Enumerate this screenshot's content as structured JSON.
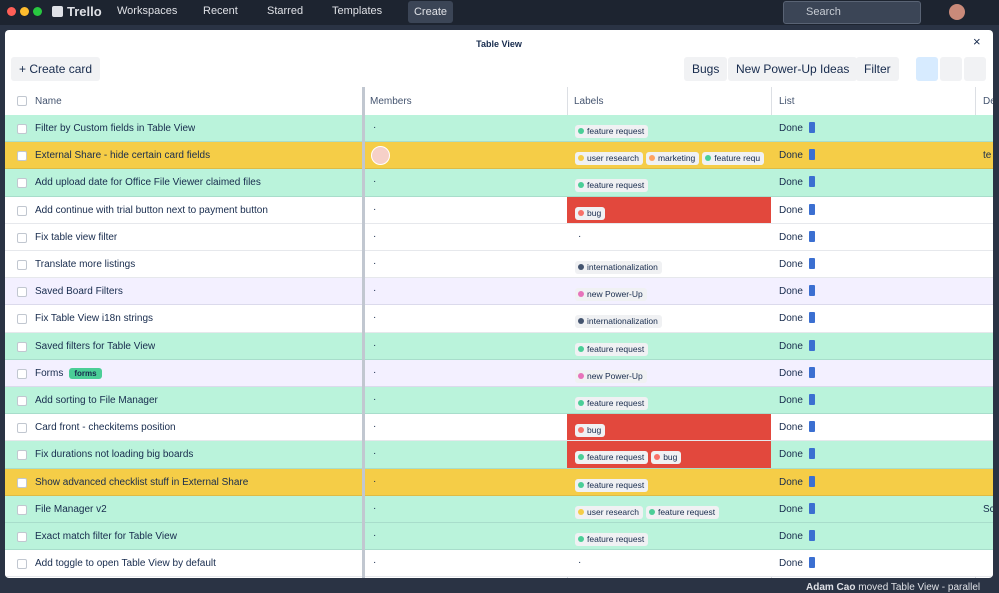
{
  "topbar": {
    "brand": "Trello",
    "nav": [
      "Workspaces",
      "Recent",
      "Starred",
      "Templates"
    ],
    "create": "Create",
    "search": "Search"
  },
  "modal": {
    "title": "Table View",
    "toolbar": {
      "create_card": "Create card",
      "buttons": [
        "Bugs",
        "New Power-Up Ideas",
        "Filter"
      ]
    },
    "columns": [
      "Name",
      "Members",
      "Labels",
      "List",
      "De"
    ],
    "rows": [
      {
        "name": "Filter by Custom fields in Table View",
        "bg": "#baf3db",
        "members": "·",
        "labels": [
          {
            "text": "feature request",
            "dot": "#4bce97"
          }
        ],
        "list": "Done"
      },
      {
        "name": "External Share - hide certain card fields",
        "bg": "#f5cd47",
        "labels": [
          {
            "text": "user research",
            "dot": "#f5cd47"
          },
          {
            "text": "marketing",
            "dot": "#fea362"
          },
          {
            "text": "feature requ",
            "dot": "#4bce97"
          }
        ],
        "list": "Done",
        "extra": "te"
      },
      {
        "name": "Add upload date for Office File Viewer claimed files",
        "bg": "#baf3db",
        "members": "·",
        "labels": [
          {
            "text": "feature request",
            "dot": "#4bce97"
          }
        ],
        "list": "Done"
      },
      {
        "name": "Add continue with trial button next to payment button",
        "bg": "#ffffff",
        "members": "·",
        "label_bg": "#e2483d",
        "labels": [
          {
            "text": "bug",
            "dot": "#f87168"
          }
        ],
        "list": "Done"
      },
      {
        "name": "Fix table view filter",
        "bg": "#ffffff",
        "members": "·",
        "labels_empty": "·",
        "list": "Done"
      },
      {
        "name": "Translate more listings",
        "bg": "#ffffff",
        "members": "·",
        "labels": [
          {
            "text": "internationalization",
            "dot": "#44546f"
          }
        ],
        "list": "Done"
      },
      {
        "name": "Saved Board Filters",
        "bg": "#f3f0ff",
        "members": "·",
        "labels": [
          {
            "text": "new Power-Up",
            "dot": "#e774bb"
          }
        ],
        "list": "Done"
      },
      {
        "name": "Fix Table View i18n strings",
        "bg": "#ffffff",
        "members": "·",
        "labels": [
          {
            "text": "internationalization",
            "dot": "#44546f"
          }
        ],
        "list": "Done"
      },
      {
        "name": "Saved filters for Table View",
        "bg": "#baf3db",
        "members": "·",
        "labels": [
          {
            "text": "feature request",
            "dot": "#4bce97"
          }
        ],
        "list": "Done"
      },
      {
        "name": "Forms",
        "badge": "forms",
        "bg": "#f3f0ff",
        "members": "·",
        "labels": [
          {
            "text": "new Power-Up",
            "dot": "#e774bb"
          }
        ],
        "list": "Done"
      },
      {
        "name": "Add sorting to File Manager",
        "bg": "#baf3db",
        "members": "·",
        "labels": [
          {
            "text": "feature request",
            "dot": "#4bce97"
          }
        ],
        "list": "Done"
      },
      {
        "name": "Card front - checkitems position",
        "bg": "#ffffff",
        "members": "·",
        "label_bg": "#e2483d",
        "labels": [
          {
            "text": "bug",
            "dot": "#f87168"
          }
        ],
        "list": "Done"
      },
      {
        "name": "Fix durations not loading big boards",
        "bg": "#baf3db",
        "members": "·",
        "label_bg": "#e2483d",
        "labels": [
          {
            "text": "feature request",
            "dot": "#4bce97"
          },
          {
            "text": "bug",
            "dot": "#f87168"
          }
        ],
        "list": "Done"
      },
      {
        "name": "Show advanced checklist stuff in External Share",
        "bg": "#f5cd47",
        "members": "·",
        "labels": [
          {
            "text": "feature request",
            "dot": "#4bce97"
          }
        ],
        "list": "Done"
      },
      {
        "name": "File Manager v2",
        "bg": "#baf3db",
        "members": "·",
        "labels": [
          {
            "text": "user research",
            "dot": "#f5cd47"
          },
          {
            "text": "feature request",
            "dot": "#4bce97"
          }
        ],
        "list": "Done",
        "extra": "Sc"
      },
      {
        "name": "Exact match filter for Table View",
        "bg": "#baf3db",
        "members": "·",
        "labels": [
          {
            "text": "feature request",
            "dot": "#4bce97"
          }
        ],
        "list": "Done"
      },
      {
        "name": "Add toggle to open Table View by default",
        "bg": "#ffffff",
        "members": "·",
        "labels_empty": "·",
        "list": "Done"
      }
    ]
  },
  "activity": {
    "user": "Adam Cao",
    "text": "moved Table View - parallel"
  }
}
